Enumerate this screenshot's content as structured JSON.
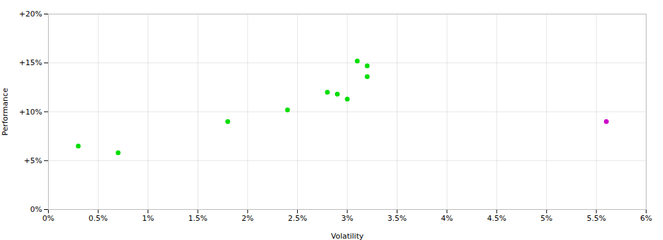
{
  "chart_data": {
    "type": "scatter",
    "xlabel": "Volatility",
    "ylabel": "Performance",
    "xlim": [
      0,
      0.06
    ],
    "ylim": [
      0,
      0.2
    ],
    "xticks": [
      {
        "value": 0,
        "label": "0%"
      },
      {
        "value": 0.005,
        "label": "0.5%"
      },
      {
        "value": 0.01,
        "label": "1%"
      },
      {
        "value": 0.015,
        "label": "1.5%"
      },
      {
        "value": 0.02,
        "label": "2%"
      },
      {
        "value": 0.025,
        "label": "2.5%"
      },
      {
        "value": 0.03,
        "label": "3%"
      },
      {
        "value": 0.035,
        "label": "3.5%"
      },
      {
        "value": 0.04,
        "label": "4%"
      },
      {
        "value": 0.045,
        "label": "4.5%"
      },
      {
        "value": 0.05,
        "label": "5%"
      },
      {
        "value": 0.055,
        "label": "5.5%"
      },
      {
        "value": 0.06,
        "label": "6%"
      }
    ],
    "yticks": [
      {
        "value": 0,
        "label": "0%"
      },
      {
        "value": 0.05,
        "label": "+5%"
      },
      {
        "value": 0.1,
        "label": "+10%"
      },
      {
        "value": 0.15,
        "label": "+15%"
      },
      {
        "value": 0.2,
        "label": "+20%"
      }
    ],
    "grid": true,
    "series": [
      {
        "color": "#00dd00",
        "x": [
          0.003,
          0.007,
          0.018,
          0.024,
          0.028,
          0.029,
          0.03,
          0.031,
          0.032,
          0.032
        ],
        "values": [
          0.065,
          0.058,
          0.09,
          0.102,
          0.12,
          0.118,
          0.113,
          0.152,
          0.147,
          0.136
        ]
      },
      {
        "color": "#cc00cc",
        "x": [
          0.056
        ],
        "values": [
          0.09
        ]
      }
    ]
  }
}
